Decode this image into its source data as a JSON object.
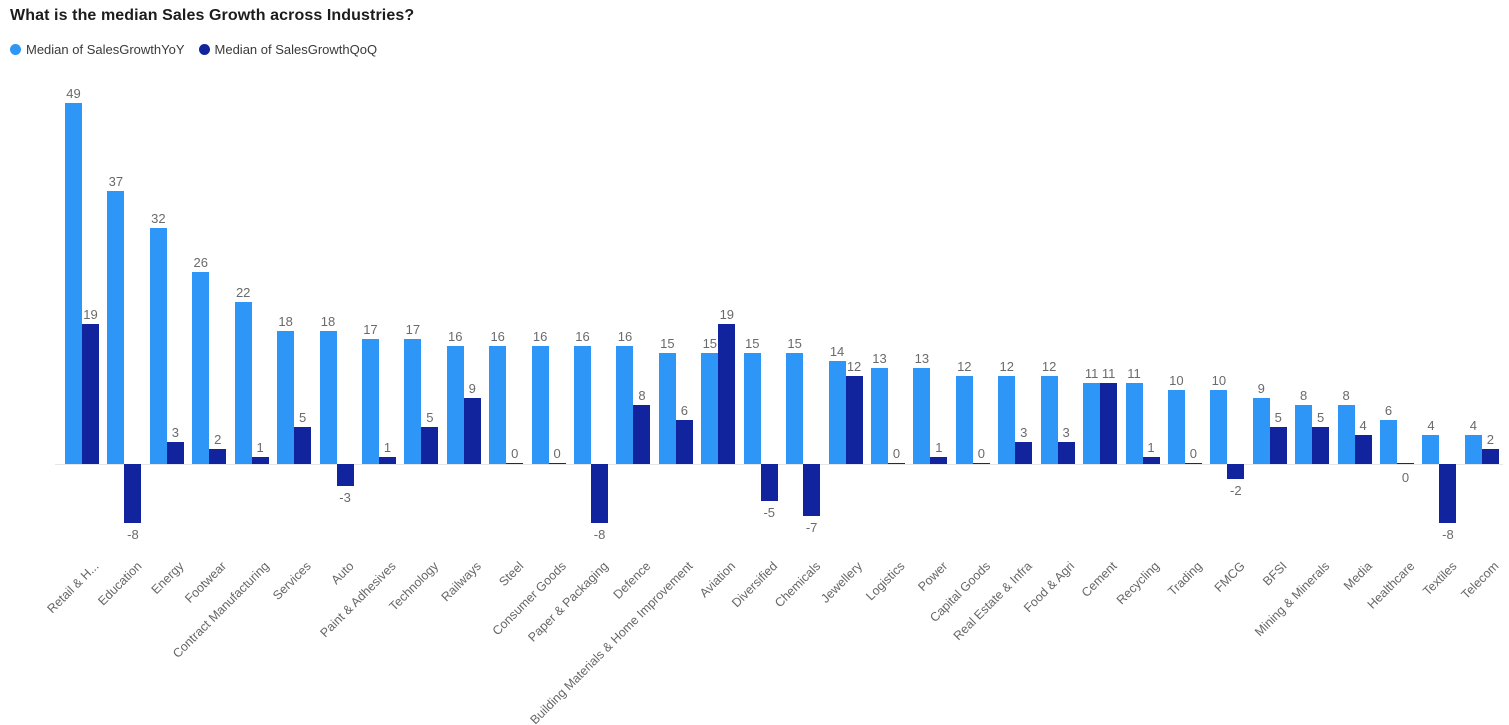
{
  "header": {
    "title": "What is the median Sales Growth across Industries?"
  },
  "legend": {
    "items": [
      {
        "label": "Median of SalesGrowthYoY",
        "color": "#2D96F6"
      },
      {
        "label": "Median of SalesGrowthQoQ",
        "color": "#12239E"
      }
    ]
  },
  "colors": {
    "yoy_bar": "#2D96F6",
    "qoq_bar": "#12239E",
    "value_label": "#6a6a6a",
    "category_label": "#666666",
    "title_text": "#1c1c1c"
  },
  "chart_data": {
    "type": "bar",
    "title": "What is the median Sales Growth across Industries?",
    "xlabel": "",
    "ylabel": "",
    "ylim": [
      -8,
      49
    ],
    "grid": false,
    "legend_position": "top-left",
    "value_labels": true,
    "categories": [
      "Retail & H...",
      "Education",
      "Energy",
      "Footwear",
      "Contract Manufacturing",
      "Services",
      "Auto",
      "Paint & Adhesives",
      "Technology",
      "Railways",
      "Steel",
      "Consumer Goods",
      "Paper & Packaging",
      "Defence",
      "Building Materials & Home Improvement",
      "Aviation",
      "Diversified",
      "Chemicals",
      "Jewellery",
      "Logistics",
      "Power",
      "Capital Goods",
      "Real Estate & Infra",
      "Food & Agri",
      "Cement",
      "Recycling",
      "Trading",
      "FMCG",
      "BFSI",
      "Mining & Minerals",
      "Media",
      "Healthcare",
      "Textiles",
      "Telecom"
    ],
    "series": [
      {
        "name": "Median of SalesGrowthYoY",
        "color": "#2D96F6",
        "values": [
          49,
          37,
          32,
          26,
          22,
          18,
          18,
          17,
          17,
          16,
          16,
          16,
          16,
          16,
          15,
          15,
          15,
          15,
          14,
          13,
          13,
          12,
          12,
          12,
          11,
          11,
          10,
          10,
          9,
          8,
          8,
          6,
          4,
          4
        ]
      },
      {
        "name": "Median of SalesGrowthQoQ",
        "color": "#12239E",
        "values": [
          19,
          -8,
          3,
          2,
          1,
          5,
          -3,
          1,
          5,
          9,
          0,
          0,
          -8,
          8,
          6,
          19,
          -5,
          -7,
          12,
          0,
          1,
          0,
          3,
          3,
          11,
          1,
          0,
          -2,
          5,
          5,
          4,
          0,
          -8,
          2
        ]
      }
    ],
    "qoq_zero_label_below": [
      "Healthcare"
    ]
  }
}
